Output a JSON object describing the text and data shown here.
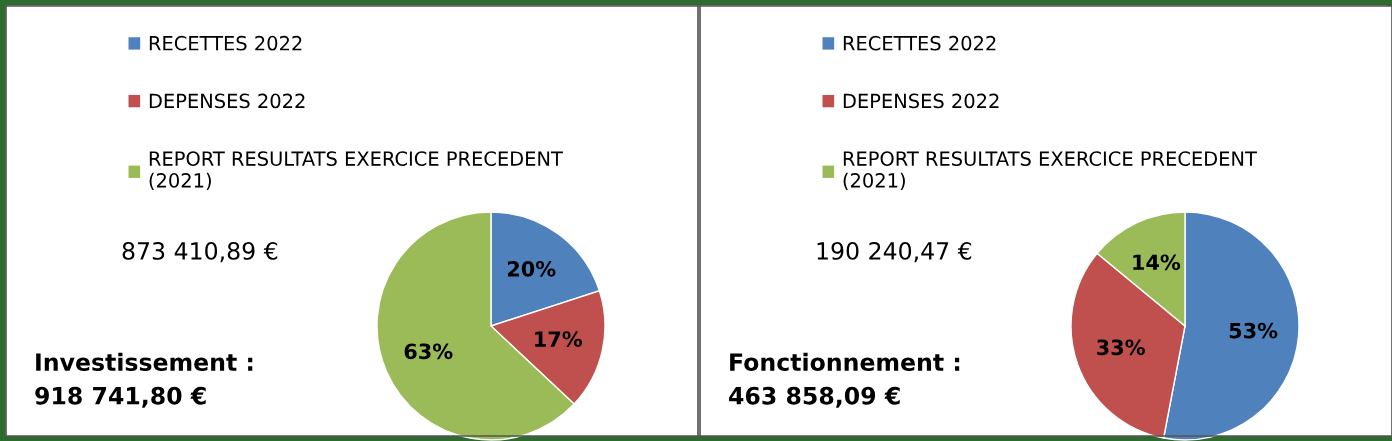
{
  "chart_data": [
    {
      "type": "pie",
      "categories": [
        "RECETTES 2022",
        "DEPENSES 2022",
        "REPORT RESULTATS EXERCICE PRECEDENT\n(2021)"
      ],
      "values": [
        20,
        17,
        63
      ],
      "colors": [
        "#4f81bd",
        "#c0504d",
        "#9bbb59"
      ],
      "value_labels": [
        "20%",
        "17%",
        "63%"
      ],
      "legend": "top left",
      "annotations": [
        "873 410,89 €",
        "Investissement :\n918 741,80 €"
      ]
    },
    {
      "type": "pie",
      "categories": [
        "RECETTES 2022",
        "DEPENSES 2022",
        "REPORT RESULTATS EXERCICE PRECEDENT\n(2021)"
      ],
      "values": [
        53,
        33,
        14
      ],
      "colors": [
        "#4f81bd",
        "#c0504d",
        "#9bbb59"
      ],
      "value_labels": [
        "53%",
        "33%",
        "14%"
      ],
      "legend": "top left",
      "annotations": [
        "190 240,47 €",
        "Fonctionnement :\n463 858,09 €"
      ]
    }
  ]
}
